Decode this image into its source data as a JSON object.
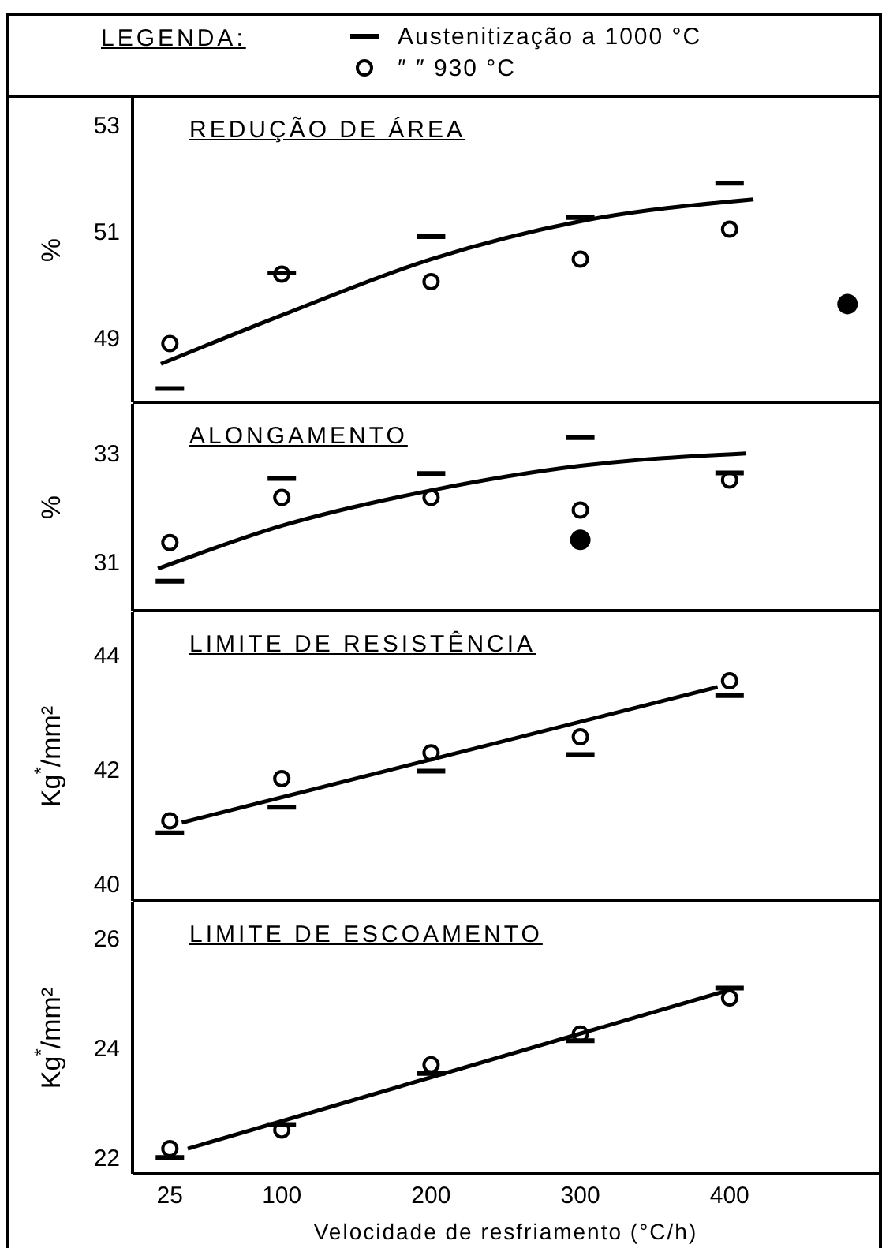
{
  "chart_data": [
    {
      "type": "scatter",
      "title": "REDUÇÃO DE ÁREA",
      "ylabel": "%",
      "xlim": [
        0,
        500
      ],
      "xticks": [
        25,
        100,
        200,
        300,
        400
      ],
      "ylim": [
        47.8,
        53.5
      ],
      "yticks": [
        49,
        51,
        53
      ],
      "tick_labels": "y",
      "legend": "top",
      "legend_title": "LEGENDA:",
      "series": [
        {
          "name": "Austenitização a 1000 °C",
          "color": "#000000",
          "x": [
            25,
            100,
            200,
            300,
            400
          ],
          "values": [
            48.06,
            50.22,
            50.9,
            51.26,
            51.9
          ]
        },
        {
          "name": "″ ″ 930 °C",
          "color": "#000000",
          "x": [
            25,
            100,
            200,
            300,
            400
          ],
          "values": [
            48.9,
            50.2,
            50.06,
            50.48,
            51.04
          ]
        },
        {
          "color": "#000000",
          "x": [
            479
          ],
          "values": [
            49.64
          ]
        },
        {
          "type": "line",
          "color": "#000000",
          "x": [
            19,
            100,
            200,
            300,
            416
          ],
          "values": [
            48.52,
            49.43,
            50.48,
            51.19,
            51.6
          ]
        }
      ]
    },
    {
      "type": "scatter",
      "title": "ALONGAMENTO",
      "ylabel": "%",
      "xlim": [
        0,
        500
      ],
      "xticks": [
        25,
        100,
        200,
        300,
        400
      ],
      "ylim": [
        30.1,
        33.9
      ],
      "yticks": [
        31,
        33
      ],
      "tick_labels": "y",
      "series": [
        {
          "color": "#000000",
          "x": [
            25,
            100,
            200,
            300,
            400
          ],
          "values": [
            30.64,
            32.53,
            32.62,
            33.28,
            32.63
          ]
        },
        {
          "color": "#000000",
          "x": [
            25,
            100,
            200,
            300,
            400
          ],
          "values": [
            31.35,
            32.18,
            32.18,
            31.95,
            32.5
          ]
        },
        {
          "color": "#000000",
          "x": [
            300
          ],
          "values": [
            31.4
          ]
        },
        {
          "type": "line",
          "color": "#000000",
          "x": [
            17,
            100,
            200,
            300,
            411
          ],
          "values": [
            30.87,
            31.66,
            32.31,
            32.76,
            32.99
          ]
        }
      ]
    },
    {
      "type": "scatter",
      "title": "LIMITE DE RESISTÊNCIA",
      "ylabel": "Kg$^{*}$/mm²",
      "xlim": [
        0,
        500
      ],
      "xticks": [
        25,
        100,
        200,
        300,
        400
      ],
      "ylim": [
        39.7,
        44.75
      ],
      "yticks": [
        40,
        42,
        44
      ],
      "tick_labels": "y",
      "series": [
        {
          "color": "#000000",
          "x": [
            25,
            100,
            200,
            300,
            400
          ],
          "values": [
            40.89,
            41.34,
            41.97,
            42.26,
            43.29
          ]
        },
        {
          "color": "#000000",
          "x": [
            25,
            100,
            200,
            300,
            400
          ],
          "values": [
            41.1,
            41.84,
            42.29,
            42.57,
            43.55
          ]
        },
        {
          "type": "line",
          "color": "#000000",
          "x": [
            33,
            392
          ],
          "values": [
            41.07,
            43.44
          ]
        }
      ]
    },
    {
      "type": "scatter",
      "title": "LIMITE DE ESCOAMENTO",
      "ylabel": "Kg$^{*}$/mm²",
      "xlabel": "Velocidade de resfriamento (°C/h)",
      "xlim": [
        0,
        500
      ],
      "xticks": [
        25,
        100,
        200,
        300,
        400
      ],
      "ylim": [
        21.7,
        26.65
      ],
      "yticks": [
        22,
        24,
        26
      ],
      "series": [
        {
          "color": "#000000",
          "x": [
            25,
            100,
            200,
            300,
            400
          ],
          "values": [
            22.0,
            22.6,
            23.53,
            24.13,
            25.09
          ]
        },
        {
          "color": "#000000",
          "x": [
            25,
            100,
            200,
            300,
            400
          ],
          "values": [
            22.16,
            22.5,
            23.69,
            24.25,
            24.91
          ]
        },
        {
          "type": "line",
          "color": "#000000",
          "x": [
            37,
            398
          ],
          "values": [
            22.16,
            25.04
          ]
        }
      ]
    }
  ]
}
